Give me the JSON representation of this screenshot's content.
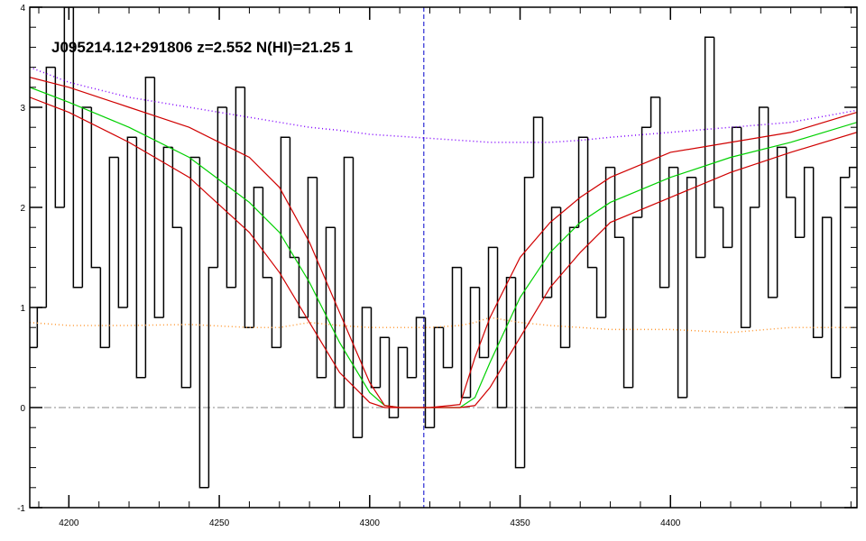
{
  "chart_data": {
    "type": "line",
    "title": "J095214.12+291806 z=2.552 N(HI)=21.25 1",
    "xlim": [
      4187,
      4462
    ],
    "ylim": [
      -1,
      4
    ],
    "xticks": [
      4200,
      4250,
      4300,
      4350,
      4400
    ],
    "yticks": [
      -1,
      0,
      1,
      2,
      3,
      4
    ],
    "vline": {
      "value": 4318,
      "color": "#0000cc"
    },
    "hline": {
      "value": 0,
      "color": "#888888"
    },
    "series": [
      {
        "color": "#000000",
        "style": "step",
        "x": [
          4188,
          4191,
          4194,
          4197,
          4200,
          4203,
          4206,
          4209,
          4212,
          4215,
          4218,
          4221,
          4224,
          4227,
          4230,
          4233,
          4236,
          4239,
          4242,
          4245,
          4248,
          4251,
          4254,
          4257,
          4260,
          4263,
          4266,
          4269,
          4272,
          4275,
          4278,
          4281,
          4284,
          4287,
          4290,
          4293,
          4296,
          4299,
          4302,
          4305,
          4308,
          4311,
          4314,
          4317,
          4320,
          4323,
          4326,
          4329,
          4332,
          4335,
          4338,
          4341,
          4344,
          4347,
          4350,
          4353,
          4356,
          4359,
          4362,
          4365,
          4368,
          4371,
          4374,
          4377,
          4380,
          4383,
          4386,
          4389,
          4392,
          4395,
          4398,
          4401,
          4404,
          4407,
          4410,
          4413,
          4416,
          4419,
          4422,
          4425,
          4428,
          4431,
          4434,
          4437,
          4440,
          4443,
          4446,
          4449,
          4452,
          4455,
          4458,
          4461
        ],
        "values": [
          0.6,
          1.0,
          3.4,
          2.0,
          4.0,
          1.2,
          3.0,
          1.4,
          0.6,
          2.5,
          1.0,
          2.7,
          0.3,
          3.3,
          0.9,
          2.6,
          1.8,
          0.2,
          2.5,
          -0.8,
          1.4,
          3.0,
          1.2,
          3.2,
          0.8,
          2.2,
          1.3,
          0.6,
          2.7,
          1.5,
          0.9,
          2.3,
          0.3,
          1.8,
          0.0,
          2.5,
          -0.3,
          1.0,
          0.2,
          0.7,
          -0.1,
          0.6,
          0.3,
          0.9,
          -0.2,
          0.8,
          0.4,
          1.4,
          0.1,
          1.2,
          0.5,
          1.6,
          0.0,
          1.3,
          -0.6,
          2.3,
          2.9,
          1.1,
          2.0,
          0.6,
          1.8,
          2.7,
          1.4,
          0.9,
          2.4,
          1.7,
          0.2,
          1.9,
          2.8,
          3.1,
          1.2,
          2.4,
          0.1,
          2.3,
          1.5,
          3.7,
          2.0,
          1.6,
          2.8,
          0.8,
          2.0,
          3.0,
          1.1,
          2.6,
          2.1,
          1.7,
          2.4,
          0.7,
          1.9,
          0.3,
          2.3,
          2.4
        ]
      },
      {
        "color": "#8000ff",
        "style": "dotted",
        "x": [
          4187,
          4200,
          4220,
          4240,
          4260,
          4270,
          4280,
          4290,
          4300,
          4305,
          4310,
          4320,
          4330,
          4335,
          4340,
          4350,
          4360,
          4370,
          4380,
          4400,
          4420,
          4440,
          4462
        ],
        "values": [
          3.4,
          3.25,
          3.1,
          3.0,
          2.9,
          2.85,
          2.8,
          2.77,
          2.73,
          2.72,
          2.71,
          2.69,
          2.67,
          2.66,
          2.65,
          2.65,
          2.65,
          2.67,
          2.7,
          2.75,
          2.8,
          2.85,
          2.97
        ]
      },
      {
        "color": "#ff9933",
        "style": "dotted",
        "x": [
          4187,
          4200,
          4220,
          4240,
          4260,
          4270,
          4280,
          4290,
          4300,
          4305,
          4310,
          4320,
          4330,
          4335,
          4340,
          4350,
          4360,
          4370,
          4380,
          4400,
          4420,
          4440,
          4462
        ],
        "values": [
          0.85,
          0.82,
          0.82,
          0.83,
          0.8,
          0.8,
          0.85,
          0.82,
          0.8,
          0.8,
          0.8,
          0.8,
          0.82,
          0.85,
          0.9,
          0.85,
          0.82,
          0.8,
          0.78,
          0.78,
          0.75,
          0.8,
          0.8
        ]
      },
      {
        "color": "#00d000",
        "style": "solid",
        "x": [
          4187,
          4200,
          4220,
          4240,
          4260,
          4270,
          4280,
          4290,
          4300,
          4305,
          4310,
          4320,
          4330,
          4335,
          4340,
          4350,
          4360,
          4370,
          4380,
          4400,
          4420,
          4440,
          4462
        ],
        "values": [
          3.2,
          3.05,
          2.8,
          2.5,
          2.05,
          1.75,
          1.25,
          0.65,
          0.15,
          0.02,
          0,
          0,
          0,
          0.1,
          0.45,
          1.1,
          1.55,
          1.85,
          2.05,
          2.3,
          2.5,
          2.65,
          2.85
        ]
      },
      {
        "color": "#d00000",
        "style": "solid",
        "x": [
          4187,
          4200,
          4220,
          4240,
          4260,
          4270,
          4280,
          4290,
          4300,
          4305,
          4310,
          4320,
          4330,
          4335,
          4340,
          4350,
          4360,
          4370,
          4380,
          4400,
          4420,
          4440,
          4462
        ],
        "values": [
          3.3,
          3.2,
          3.0,
          2.8,
          2.5,
          2.2,
          1.65,
          0.95,
          0.25,
          0.02,
          0,
          0,
          0.03,
          0.5,
          0.9,
          1.5,
          1.85,
          2.1,
          2.3,
          2.55,
          2.65,
          2.75,
          2.95
        ]
      },
      {
        "color": "#d00000",
        "style": "solid",
        "x": [
          4187,
          4200,
          4220,
          4240,
          4260,
          4270,
          4280,
          4290,
          4300,
          4305,
          4310,
          4320,
          4330,
          4335,
          4340,
          4350,
          4360,
          4370,
          4380,
          4400,
          4420,
          4440,
          4462
        ],
        "values": [
          3.1,
          2.95,
          2.65,
          2.3,
          1.75,
          1.35,
          0.85,
          0.35,
          0.05,
          0,
          0,
          0,
          0,
          0.02,
          0.2,
          0.7,
          1.2,
          1.55,
          1.85,
          2.1,
          2.35,
          2.55,
          2.75
        ]
      }
    ]
  }
}
